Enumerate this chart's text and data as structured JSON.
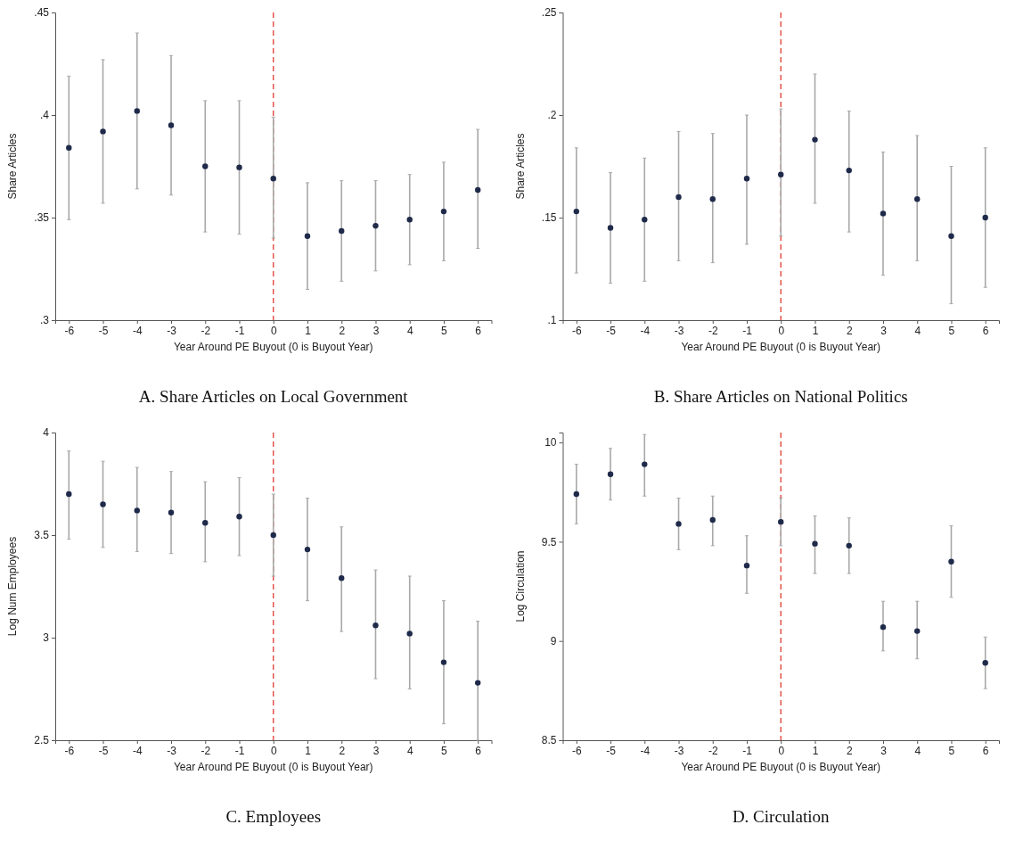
{
  "chart_data": [
    {
      "type": "scatter",
      "title": "A. Share Articles on Local Government",
      "xlabel": "Year Around PE Buyout (0 is Buyout Year)",
      "ylabel": "Share Articles",
      "x": [
        -6,
        -5,
        -4,
        -3,
        -2,
        -1,
        0,
        1,
        2,
        3,
        4,
        5,
        6
      ],
      "xlim": [
        -6.4,
        6.4
      ],
      "xticks": [
        -6,
        -5,
        -4,
        -3,
        -2,
        -1,
        0,
        1,
        2,
        3,
        4,
        5,
        6
      ],
      "ylim": [
        0.3,
        0.45
      ],
      "yticks": [
        {
          "value": 0.3,
          "label": ".3"
        },
        {
          "value": 0.35,
          "label": ".35"
        },
        {
          "value": 0.4,
          "label": ".4"
        },
        {
          "value": 0.45,
          "label": ".45"
        }
      ],
      "grid": false,
      "marker": "circle",
      "series": [
        {
          "color": "#1f2a4a",
          "values": [
            0.384,
            0.392,
            0.402,
            0.395,
            0.375,
            0.3745,
            0.369,
            0.341,
            0.3435,
            0.346,
            0.349,
            0.353,
            0.3635
          ],
          "errors": [
            [
              0.349,
              0.419
            ],
            [
              0.357,
              0.427
            ],
            [
              0.364,
              0.44
            ],
            [
              0.361,
              0.429
            ],
            [
              0.343,
              0.407
            ],
            [
              0.342,
              0.407
            ],
            [
              0.34,
              0.399
            ],
            [
              0.315,
              0.367
            ],
            [
              0.319,
              0.368
            ],
            [
              0.324,
              0.368
            ],
            [
              0.327,
              0.371
            ],
            [
              0.329,
              0.377
            ],
            [
              0.335,
              0.393
            ]
          ]
        }
      ],
      "ref_lines": [
        {
          "axis": "x",
          "value": 0,
          "color": "#e03c31",
          "line_style": "dashed"
        }
      ]
    },
    {
      "type": "scatter",
      "title": "B. Share Articles on National Politics",
      "xlabel": "Year Around PE Buyout (0 is Buyout Year)",
      "ylabel": "Share Articles",
      "x": [
        -6,
        -5,
        -4,
        -3,
        -2,
        -1,
        0,
        1,
        2,
        3,
        4,
        5,
        6
      ],
      "xlim": [
        -6.4,
        6.4
      ],
      "xticks": [
        -6,
        -5,
        -4,
        -3,
        -2,
        -1,
        0,
        1,
        2,
        3,
        4,
        5,
        6
      ],
      "ylim": [
        0.1,
        0.25
      ],
      "yticks": [
        {
          "value": 0.1,
          "label": ".1"
        },
        {
          "value": 0.15,
          "label": ".15"
        },
        {
          "value": 0.2,
          "label": ".2"
        },
        {
          "value": 0.25,
          "label": ".25"
        }
      ],
      "grid": false,
      "marker": "circle",
      "series": [
        {
          "color": "#1f2a4a",
          "values": [
            0.153,
            0.145,
            0.149,
            0.16,
            0.159,
            0.169,
            0.171,
            0.188,
            0.173,
            0.152,
            0.159,
            0.141,
            0.15
          ],
          "errors": [
            [
              0.123,
              0.184
            ],
            [
              0.118,
              0.172
            ],
            [
              0.119,
              0.179
            ],
            [
              0.129,
              0.192
            ],
            [
              0.128,
              0.191
            ],
            [
              0.137,
              0.2
            ],
            [
              0.141,
              0.203
            ],
            [
              0.157,
              0.22
            ],
            [
              0.143,
              0.202
            ],
            [
              0.122,
              0.182
            ],
            [
              0.129,
              0.19
            ],
            [
              0.108,
              0.175
            ],
            [
              0.116,
              0.184
            ]
          ]
        }
      ],
      "ref_lines": [
        {
          "axis": "x",
          "value": 0,
          "color": "#e03c31",
          "line_style": "dashed"
        }
      ]
    },
    {
      "type": "scatter",
      "title": "C. Employees",
      "xlabel": "Year Around PE Buyout (0 is Buyout Year)",
      "ylabel": "Log Num Employees",
      "x": [
        -6,
        -5,
        -4,
        -3,
        -2,
        -1,
        0,
        1,
        2,
        3,
        4,
        5,
        6
      ],
      "xlim": [
        -6.4,
        6.4
      ],
      "xticks": [
        -6,
        -5,
        -4,
        -3,
        -2,
        -1,
        0,
        1,
        2,
        3,
        4,
        5,
        6
      ],
      "ylim": [
        2.5,
        4
      ],
      "yticks": [
        2.5,
        3,
        3.5,
        4
      ],
      "grid": false,
      "marker": "circle",
      "series": [
        {
          "color": "#1f2a4a",
          "values": [
            3.7,
            3.65,
            3.62,
            3.61,
            3.56,
            3.59,
            3.5,
            3.43,
            3.29,
            3.06,
            3.02,
            2.88,
            2.78
          ],
          "errors": [
            [
              3.48,
              3.91
            ],
            [
              3.44,
              3.86
            ],
            [
              3.42,
              3.83
            ],
            [
              3.41,
              3.81
            ],
            [
              3.37,
              3.76
            ],
            [
              3.4,
              3.78
            ],
            [
              3.3,
              3.7
            ],
            [
              3.18,
              3.68
            ],
            [
              3.03,
              3.54
            ],
            [
              2.8,
              3.33
            ],
            [
              2.75,
              3.3
            ],
            [
              2.58,
              3.18
            ],
            [
              2.5,
              3.08
            ]
          ]
        }
      ],
      "ref_lines": [
        {
          "axis": "x",
          "value": 0,
          "color": "#e03c31",
          "line_style": "dashed"
        }
      ]
    },
    {
      "type": "scatter",
      "title": "D. Circulation",
      "xlabel": "Year Around PE Buyout (0 is Buyout Year)",
      "ylabel": "Log Circulation",
      "x": [
        -6,
        -5,
        -4,
        -3,
        -2,
        -1,
        0,
        1,
        2,
        3,
        4,
        5,
        6
      ],
      "xlim": [
        -6.4,
        6.4
      ],
      "xticks": [
        -6,
        -5,
        -4,
        -3,
        -2,
        -1,
        0,
        1,
        2,
        3,
        4,
        5,
        6
      ],
      "ylim": [
        8.5,
        10.05
      ],
      "yticks": [
        8.5,
        9,
        9.5,
        10
      ],
      "grid": false,
      "marker": "circle",
      "series": [
        {
          "color": "#1f2a4a",
          "values": [
            9.74,
            9.84,
            9.89,
            9.59,
            9.61,
            9.38,
            9.6,
            9.49,
            9.48,
            9.07,
            9.05,
            9.4,
            8.89
          ],
          "errors": [
            [
              9.59,
              9.89
            ],
            [
              9.71,
              9.97
            ],
            [
              9.73,
              10.04
            ],
            [
              9.46,
              9.72
            ],
            [
              9.48,
              9.73
            ],
            [
              9.24,
              9.53
            ],
            [
              9.48,
              9.72
            ],
            [
              9.34,
              9.63
            ],
            [
              9.34,
              9.62
            ],
            [
              8.95,
              9.2
            ],
            [
              8.91,
              9.2
            ],
            [
              9.22,
              9.58
            ],
            [
              8.76,
              9.02
            ]
          ]
        }
      ],
      "ref_lines": [
        {
          "axis": "x",
          "value": 0,
          "color": "#e03c31",
          "line_style": "dashed"
        }
      ]
    }
  ]
}
